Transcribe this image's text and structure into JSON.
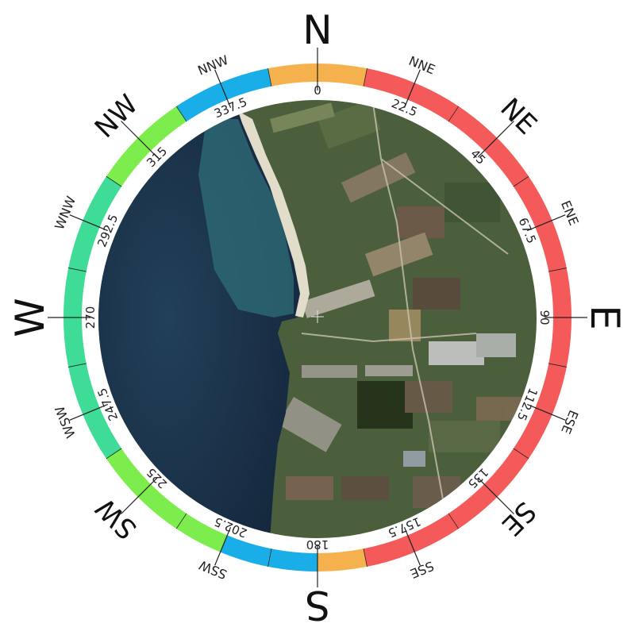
{
  "compass": {
    "directions": [
      {
        "label": "N",
        "deg": 0,
        "size": "cardinal"
      },
      {
        "label": "NNE",
        "deg": 22.5,
        "size": "minor"
      },
      {
        "label": "NE",
        "deg": 45,
        "size": "intercard"
      },
      {
        "label": "ENE",
        "deg": 67.5,
        "size": "minor"
      },
      {
        "label": "E",
        "deg": 90,
        "size": "cardinal"
      },
      {
        "label": "ESE",
        "deg": 112.5,
        "size": "minor"
      },
      {
        "label": "SE",
        "deg": 135,
        "size": "intercard"
      },
      {
        "label": "SSE",
        "deg": 157.5,
        "size": "minor"
      },
      {
        "label": "S",
        "deg": 180,
        "size": "cardinal"
      },
      {
        "label": "SSW",
        "deg": 202.5,
        "size": "minor"
      },
      {
        "label": "SW",
        "deg": 225,
        "size": "intercard"
      },
      {
        "label": "WSW",
        "deg": 247.5,
        "size": "minor"
      },
      {
        "label": "W",
        "deg": 270,
        "size": "cardinal"
      },
      {
        "label": "WNW",
        "deg": 292.5,
        "size": "minor"
      },
      {
        "label": "NW",
        "deg": 315,
        "size": "intercard"
      },
      {
        "label": "NNW",
        "deg": 337.5,
        "size": "minor"
      }
    ],
    "degree_labels": [
      "0",
      "22.5",
      "45",
      "67.5",
      "90",
      "112.5",
      "135",
      "157.5",
      "180",
      "202.5",
      "225",
      "247.5",
      "270",
      "292.5",
      "315",
      "337.5"
    ],
    "ring_segments": [
      {
        "from": 348.75,
        "to": 11.25,
        "color": "#f5b14d"
      },
      {
        "from": 11.25,
        "to": 168.75,
        "color": "#f55a5a"
      },
      {
        "from": 168.75,
        "to": 180,
        "color": "#f5b14d"
      },
      {
        "from": 180,
        "to": 202.5,
        "color": "#1aaee8"
      },
      {
        "from": 202.5,
        "to": 236.25,
        "color": "#7ded4d"
      },
      {
        "from": 236.25,
        "to": 303.75,
        "color": "#3fdc98"
      },
      {
        "from": 303.75,
        "to": 326.25,
        "color": "#7ded4d"
      },
      {
        "from": 326.25,
        "to": 348.75,
        "color": "#1aaee8"
      }
    ],
    "colors": {
      "sea": "#1c3550",
      "shallow_water": "#2e6e7a",
      "beach": "#e3dccd",
      "land": "#4a5e3b",
      "tick": "#222222"
    }
  }
}
